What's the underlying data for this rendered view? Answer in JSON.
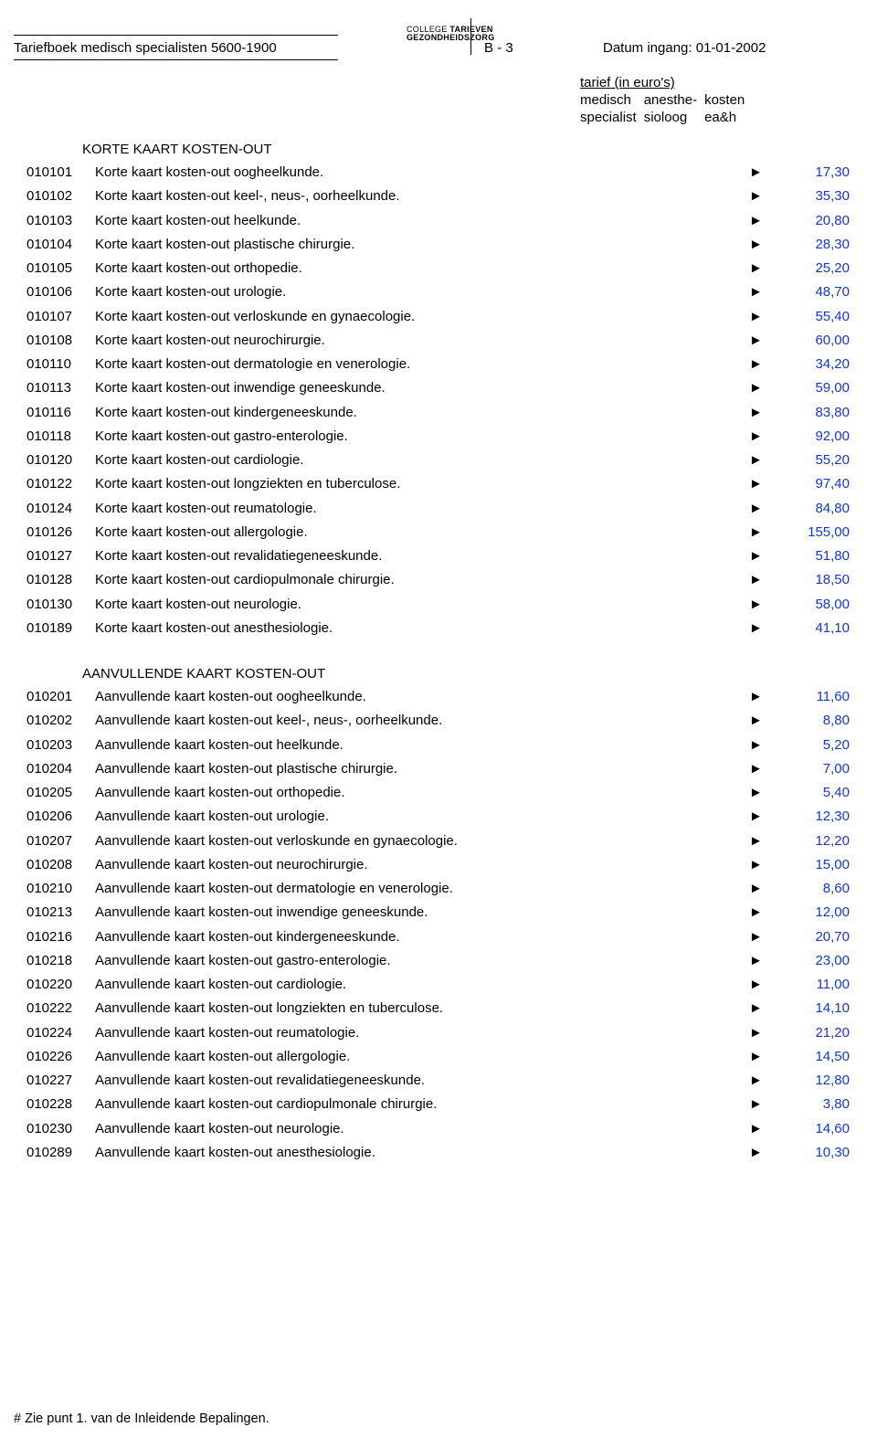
{
  "header": {
    "doc_title": "Tariefboek medisch specialisten 5600-1900",
    "logo_line1a": "COLLEGE ",
    "logo_line1b": "TARIEVEN",
    "logo_line2": "GEZONDHEIDSZORG",
    "page_id": "B - 3",
    "date_in": "Datum ingang: 01-01-2002",
    "col_head_title": "tarief (in euro's)",
    "col1a": "medisch",
    "col1b": "specialist",
    "col2a": "anesthe-",
    "col2b": "sioloog",
    "col3a": "kosten",
    "col3b": "ea&h"
  },
  "value_color": "#1438d6",
  "arrow_glyph": "►",
  "sections": [
    {
      "title": "KORTE KAART KOSTEN-OUT",
      "rows": [
        {
          "code": "010101",
          "desc": "Korte kaart kosten-out oogheelkunde.",
          "val": "17,30"
        },
        {
          "code": "010102",
          "desc": "Korte kaart kosten-out keel-, neus-, oorheelkunde.",
          "val": "35,30"
        },
        {
          "code": "010103",
          "desc": "Korte kaart kosten-out heelkunde.",
          "val": "20,80"
        },
        {
          "code": "010104",
          "desc": "Korte kaart kosten-out plastische chirurgie.",
          "val": "28,30"
        },
        {
          "code": "010105",
          "desc": "Korte kaart kosten-out orthopedie.",
          "val": "25,20"
        },
        {
          "code": "010106",
          "desc": "Korte kaart kosten-out urologie.",
          "val": "48,70"
        },
        {
          "code": "010107",
          "desc": "Korte kaart kosten-out verloskunde en gynaecologie.",
          "val": "55,40"
        },
        {
          "code": "010108",
          "desc": "Korte kaart kosten-out neurochirurgie.",
          "val": "60,00"
        },
        {
          "code": "010110",
          "desc": "Korte kaart kosten-out dermatologie en venerologie.",
          "val": "34,20"
        },
        {
          "code": "010113",
          "desc": "Korte kaart kosten-out inwendige geneeskunde.",
          "val": "59,00"
        },
        {
          "code": "010116",
          "desc": "Korte kaart kosten-out kindergeneeskunde.",
          "val": "83,80"
        },
        {
          "code": "010118",
          "desc": "Korte kaart kosten-out gastro-enterologie.",
          "val": "92,00"
        },
        {
          "code": "010120",
          "desc": "Korte kaart kosten-out cardiologie.",
          "val": "55,20"
        },
        {
          "code": "010122",
          "desc": "Korte kaart kosten-out longziekten en tuberculose.",
          "val": "97,40"
        },
        {
          "code": "010124",
          "desc": "Korte kaart kosten-out reumatologie.",
          "val": "84,80"
        },
        {
          "code": "010126",
          "desc": "Korte kaart kosten-out allergologie.",
          "val": "155,00"
        },
        {
          "code": "010127",
          "desc": "Korte kaart kosten-out revalidatiegeneeskunde.",
          "val": "51,80"
        },
        {
          "code": "010128",
          "desc": "Korte kaart kosten-out cardiopulmonale chirurgie.",
          "val": "18,50"
        },
        {
          "code": "010130",
          "desc": "Korte kaart kosten-out neurologie.",
          "val": "58,00"
        },
        {
          "code": "010189",
          "desc": "Korte kaart kosten-out anesthesiologie.",
          "val": "41,10"
        }
      ]
    },
    {
      "title": "AANVULLENDE KAART KOSTEN-OUT",
      "rows": [
        {
          "code": "010201",
          "desc": "Aanvullende kaart kosten-out oogheelkunde.",
          "val": "11,60"
        },
        {
          "code": "010202",
          "desc": "Aanvullende kaart kosten-out keel-, neus-, oorheelkunde.",
          "val": "8,80"
        },
        {
          "code": "010203",
          "desc": "Aanvullende kaart kosten-out heelkunde.",
          "val": "5,20"
        },
        {
          "code": "010204",
          "desc": "Aanvullende kaart kosten-out plastische chirurgie.",
          "val": "7,00"
        },
        {
          "code": "010205",
          "desc": "Aanvullende kaart kosten-out orthopedie.",
          "val": "5,40"
        },
        {
          "code": "010206",
          "desc": "Aanvullende kaart kosten-out urologie.",
          "val": "12,30"
        },
        {
          "code": "010207",
          "desc": "Aanvullende kaart kosten-out verloskunde en gynaecologie.",
          "val": "12,20"
        },
        {
          "code": "010208",
          "desc": "Aanvullende kaart kosten-out neurochirurgie.",
          "val": "15,00"
        },
        {
          "code": "010210",
          "desc": "Aanvullende kaart kosten-out dermatologie en venerologie.",
          "val": "8,60"
        },
        {
          "code": "010213",
          "desc": "Aanvullende kaart kosten-out inwendige geneeskunde.",
          "val": "12,00"
        },
        {
          "code": "010216",
          "desc": "Aanvullende kaart kosten-out kindergeneeskunde.",
          "val": "20,70"
        },
        {
          "code": "010218",
          "desc": "Aanvullende kaart kosten-out gastro-enterologie.",
          "val": "23,00"
        },
        {
          "code": "010220",
          "desc": "Aanvullende kaart kosten-out cardiologie.",
          "val": "11,00"
        },
        {
          "code": "010222",
          "desc": "Aanvullende kaart kosten-out longziekten en tuberculose.",
          "val": "14,10"
        },
        {
          "code": "010224",
          "desc": "Aanvullende kaart kosten-out reumatologie.",
          "val": "21,20"
        },
        {
          "code": "010226",
          "desc": "Aanvullende kaart kosten-out allergologie.",
          "val": "14,50"
        },
        {
          "code": "010227",
          "desc": "Aanvullende kaart kosten-out revalidatiegeneeskunde.",
          "val": "12,80"
        },
        {
          "code": "010228",
          "desc": "Aanvullende kaart kosten-out cardiopulmonale chirurgie.",
          "val": "3,80"
        },
        {
          "code": "010230",
          "desc": "Aanvullende kaart kosten-out neurologie.",
          "val": "14,60"
        },
        {
          "code": "010289",
          "desc": "Aanvullende kaart kosten-out anesthesiologie.",
          "val": "10,30"
        }
      ]
    }
  ],
  "footnote": "# Zie punt 1. van de Inleidende Bepalingen."
}
